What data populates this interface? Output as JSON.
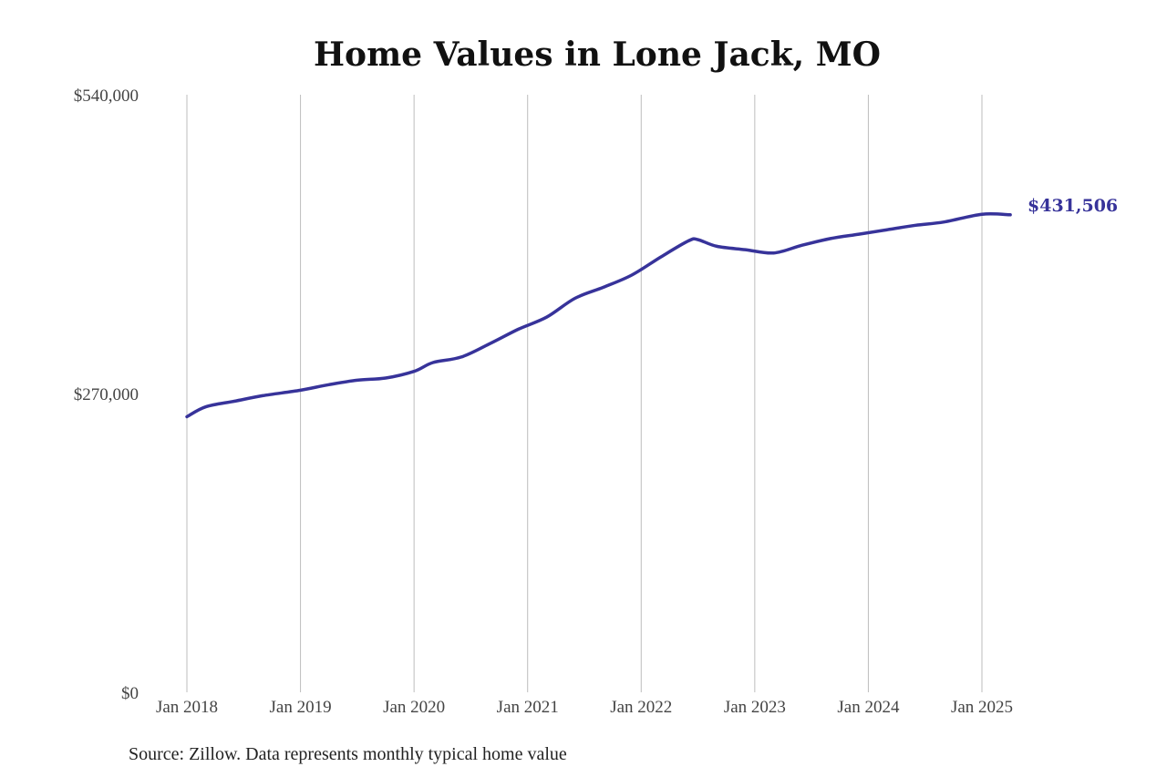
{
  "chart_data": {
    "type": "line",
    "title": "Home Values in Lone Jack, MO",
    "source_note": "Source: Zillow. Data represents monthly typical home value",
    "xlabel": "",
    "ylabel": "",
    "ylim": [
      0,
      540000
    ],
    "y_ticks": [
      {
        "value": 0,
        "label": "$0"
      },
      {
        "value": 270000,
        "label": "$270,000"
      },
      {
        "value": 540000,
        "label": "$540,000"
      }
    ],
    "x_ticks": [
      {
        "value": "2018-01",
        "label": "Jan 2018"
      },
      {
        "value": "2019-01",
        "label": "Jan 2019"
      },
      {
        "value": "2020-01",
        "label": "Jan 2020"
      },
      {
        "value": "2021-01",
        "label": "Jan 2021"
      },
      {
        "value": "2022-01",
        "label": "Jan 2022"
      },
      {
        "value": "2023-01",
        "label": "Jan 2023"
      },
      {
        "value": "2024-01",
        "label": "Jan 2024"
      },
      {
        "value": "2025-01",
        "label": "Jan 2025"
      }
    ],
    "grid": "vertical",
    "line_color": "#37339a",
    "end_label": "$431,506",
    "series": [
      {
        "values": [
          {
            "x": "2018-01",
            "y": 249000
          },
          {
            "x": "2018-03",
            "y": 258000
          },
          {
            "x": "2018-06",
            "y": 263000
          },
          {
            "x": "2018-09",
            "y": 268000
          },
          {
            "x": "2019-01",
            "y": 273000
          },
          {
            "x": "2019-04",
            "y": 278000
          },
          {
            "x": "2019-07",
            "y": 282000
          },
          {
            "x": "2019-10",
            "y": 284000
          },
          {
            "x": "2020-01",
            "y": 290000
          },
          {
            "x": "2020-03",
            "y": 298000
          },
          {
            "x": "2020-06",
            "y": 303000
          },
          {
            "x": "2020-09",
            "y": 315000
          },
          {
            "x": "2020-12",
            "y": 328000
          },
          {
            "x": "2021-03",
            "y": 339000
          },
          {
            "x": "2021-06",
            "y": 356000
          },
          {
            "x": "2021-09",
            "y": 366000
          },
          {
            "x": "2021-12",
            "y": 377000
          },
          {
            "x": "2022-03",
            "y": 393000
          },
          {
            "x": "2022-06",
            "y": 408000
          },
          {
            "x": "2022-07",
            "y": 409000
          },
          {
            "x": "2022-09",
            "y": 403000
          },
          {
            "x": "2022-12",
            "y": 400000
          },
          {
            "x": "2023-03",
            "y": 397000
          },
          {
            "x": "2023-06",
            "y": 404000
          },
          {
            "x": "2023-09",
            "y": 410000
          },
          {
            "x": "2023-12",
            "y": 414000
          },
          {
            "x": "2024-03",
            "y": 418000
          },
          {
            "x": "2024-06",
            "y": 422000
          },
          {
            "x": "2024-09",
            "y": 425000
          },
          {
            "x": "2025-01",
            "y": 432000
          },
          {
            "x": "2025-04",
            "y": 431506
          }
        ]
      }
    ]
  }
}
